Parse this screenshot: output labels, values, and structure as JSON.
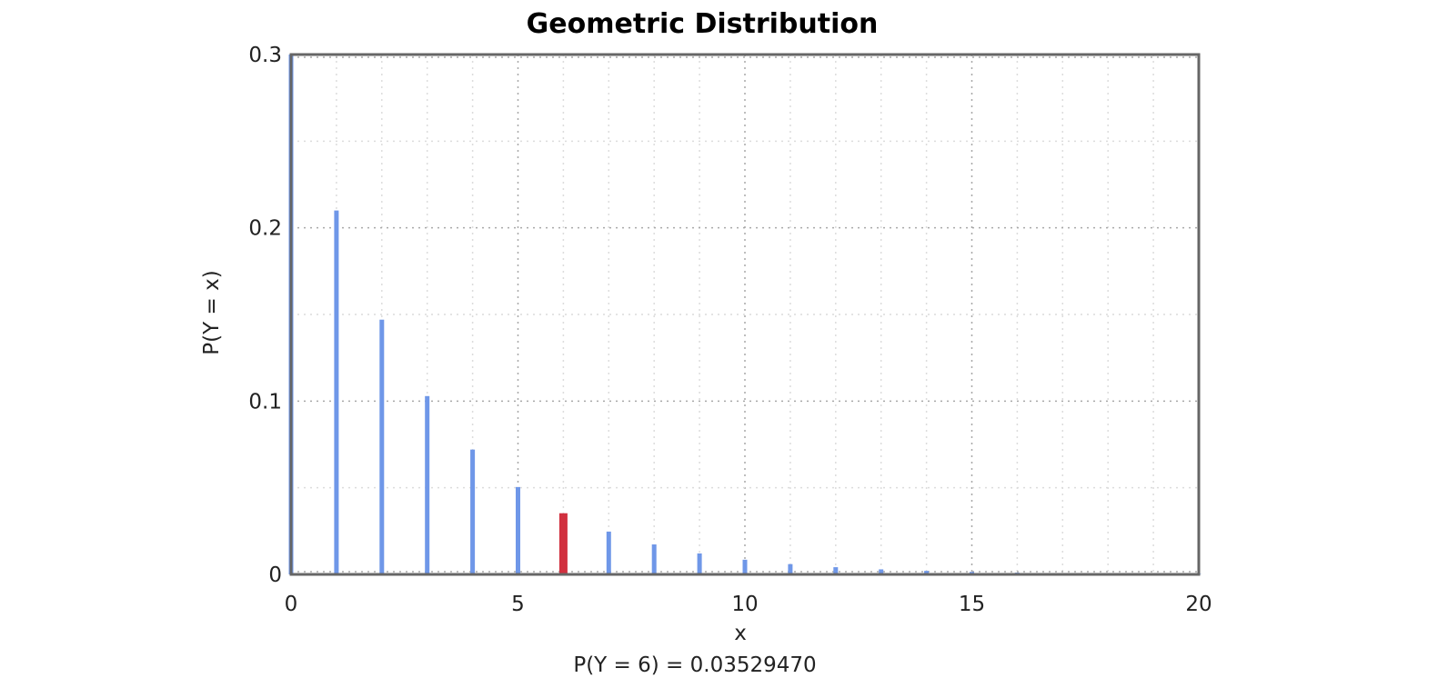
{
  "chart_data": {
    "type": "bar",
    "title": "Geometric Distribution",
    "xlabel": "x",
    "ylabel": "P(Y = x)",
    "xlim": [
      0,
      20
    ],
    "ylim": [
      0,
      0.3
    ],
    "xticks": [
      0,
      5,
      10,
      15,
      20
    ],
    "yticks": [
      0,
      0.1,
      0.2,
      0.3
    ],
    "xtick_labels": [
      "0",
      "5",
      "10",
      "15",
      "20"
    ],
    "ytick_labels": [
      "0",
      "0.1",
      "0.2",
      "0.3"
    ],
    "grid": true,
    "legend": "none",
    "x": [
      0,
      1,
      2,
      3,
      4,
      5,
      6,
      7,
      8,
      9,
      10,
      11,
      12,
      13,
      14,
      15,
      16,
      17,
      18,
      19,
      20
    ],
    "values": [
      0.3,
      0.21,
      0.147,
      0.1029,
      0.07203,
      0.050421,
      0.0352947,
      0.0247063,
      0.0172944,
      0.0121061,
      0.00847426,
      0.00593198,
      0.00415239,
      0.00290667,
      0.00203467,
      0.00142427,
      0.000996988,
      0.000697892,
      0.000488524,
      0.000341967,
      0.000239377
    ],
    "highlight_x": 6,
    "bar_color": "#6f97e8",
    "highlight_color": "#d1303f",
    "annotation": "P(Y = 6) = 0.03529470"
  }
}
